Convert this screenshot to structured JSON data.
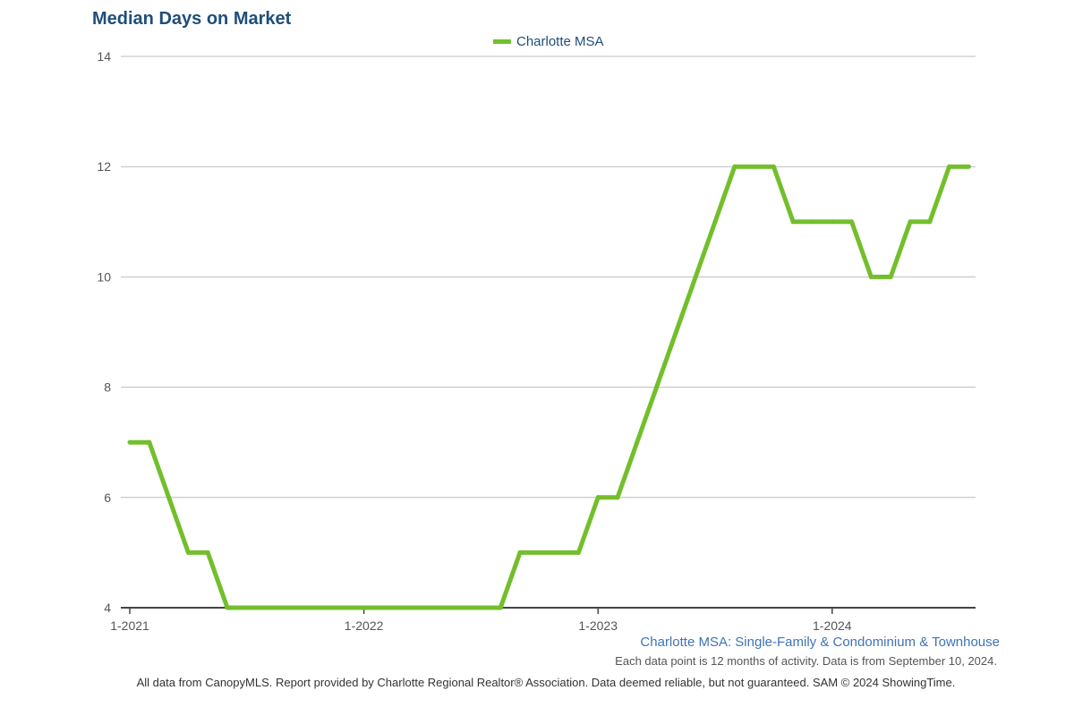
{
  "title": "Median Days on Market",
  "subtitle": "Charlotte MSA: Single-Family & Condominium & Townhouse",
  "note": "Each data point is 12 months of activity. Data is from September 10, 2024.",
  "footer": "All data from CanopyMLS. Report provided by Charlotte Regional Realtor® Association. Data deemed reliable, but not guaranteed. SAM © 2024 ShowingTime.",
  "colors": {
    "series": "#72bf2b",
    "title": "#1f4e79",
    "grid": "#bbbbbb",
    "axis": "#555555"
  },
  "chart_data": {
    "type": "line",
    "title": "Median Days on Market",
    "xlabel": "",
    "ylabel": "",
    "ylim": [
      4,
      14
    ],
    "yticks": [
      4,
      6,
      8,
      10,
      12,
      14
    ],
    "xtick_labels": [
      "1-2021",
      "1-2022",
      "1-2023",
      "1-2024"
    ],
    "legend": "top-center",
    "grid": true,
    "x": [
      "1-2021",
      "2-2021",
      "3-2021",
      "4-2021",
      "5-2021",
      "6-2021",
      "7-2021",
      "8-2021",
      "9-2021",
      "10-2021",
      "11-2021",
      "12-2021",
      "1-2022",
      "2-2022",
      "3-2022",
      "4-2022",
      "5-2022",
      "6-2022",
      "7-2022",
      "8-2022",
      "9-2022",
      "10-2022",
      "11-2022",
      "12-2022",
      "1-2023",
      "2-2023",
      "3-2023",
      "4-2023",
      "5-2023",
      "6-2023",
      "7-2023",
      "8-2023",
      "9-2023",
      "10-2023",
      "11-2023",
      "12-2023",
      "1-2024",
      "2-2024",
      "3-2024",
      "4-2024",
      "5-2024",
      "6-2024",
      "7-2024",
      "8-2024"
    ],
    "series": [
      {
        "name": "Charlotte MSA",
        "values": [
          7,
          7,
          6,
          5,
          5,
          4,
          4,
          4,
          4,
          4,
          4,
          4,
          4,
          4,
          4,
          4,
          4,
          4,
          4,
          4,
          5,
          5,
          5,
          5,
          6,
          6,
          7,
          8,
          9,
          10,
          11,
          12,
          12,
          12,
          11,
          11,
          11,
          11,
          10,
          10,
          11,
          11,
          12,
          12
        ]
      }
    ]
  }
}
